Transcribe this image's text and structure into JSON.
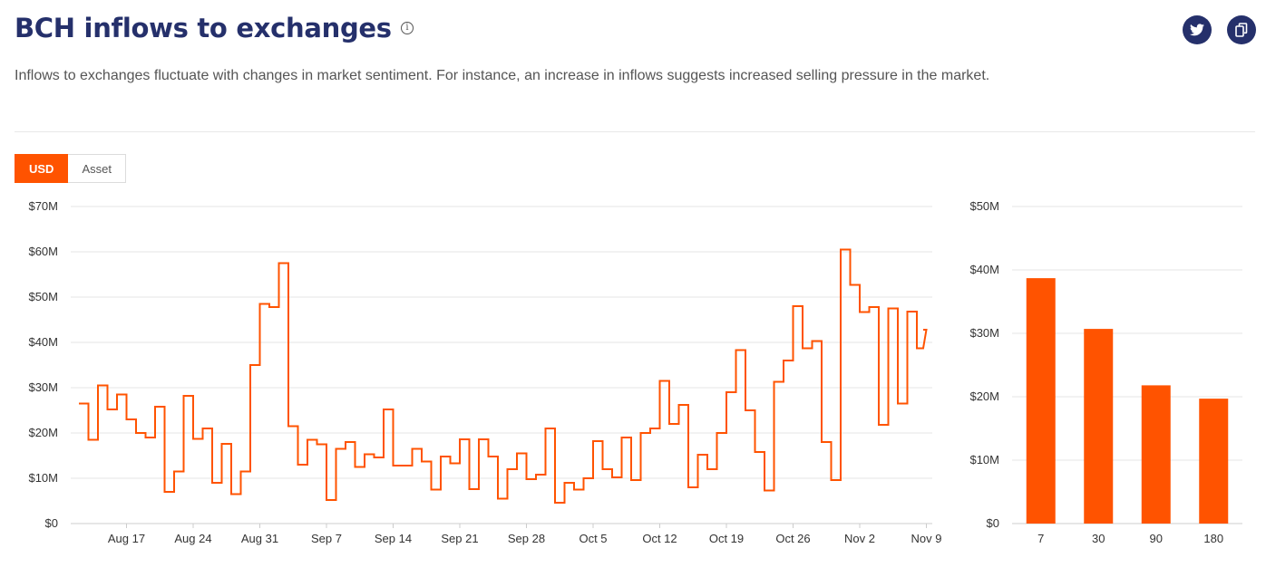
{
  "header": {
    "title": "BCH inflows to exchanges",
    "info_symbol": "i",
    "description": "Inflows to exchanges fluctuate with changes in market sentiment. For instance, an increase in inflows suggests increased selling pressure in the market."
  },
  "share": {
    "twitter_icon": "twitter-icon",
    "copy_icon": "copy-icon"
  },
  "toggle": {
    "options": [
      "USD",
      "Asset"
    ],
    "selected": "USD"
  },
  "colors": {
    "accent": "#ff5300",
    "title": "#25306b",
    "grid": "#e6e6e6"
  },
  "chart_data": [
    {
      "type": "line",
      "step": true,
      "title": "",
      "xlabel": "",
      "ylabel": "",
      "ylim": [
        0,
        70
      ],
      "yticks": [
        0,
        10,
        20,
        30,
        40,
        50,
        60,
        70
      ],
      "ytick_labels": [
        "$0",
        "$10M",
        "$20M",
        "$30M",
        "$40M",
        "$50M",
        "$60M",
        "$70M"
      ],
      "unit": "$M",
      "x_start": "Aug 12",
      "xtick_labels": [
        "Aug 17",
        "Aug 24",
        "Aug 31",
        "Sep 7",
        "Sep 14",
        "Sep 21",
        "Sep 28",
        "Oct 5",
        "Oct 12",
        "Oct 19",
        "Oct 26",
        "Nov 2",
        "Nov 9"
      ],
      "xtick_day_index": [
        5,
        12,
        19,
        26,
        33,
        40,
        47,
        54,
        61,
        68,
        75,
        82,
        89
      ],
      "grid": true,
      "series": [
        {
          "values": [
            26.5,
            18.5,
            30.5,
            25.2,
            28.5,
            23.0,
            20.0,
            19.0,
            25.8,
            7.0,
            11.5,
            28.2,
            18.7,
            21.0,
            9.0,
            17.6,
            6.5,
            11.5,
            35.0,
            48.5,
            47.8,
            57.5,
            21.5,
            13.0,
            18.5,
            17.5,
            5.2,
            16.5,
            18.0,
            12.5,
            15.3,
            14.6,
            25.2,
            12.8,
            12.8,
            16.5,
            13.7,
            7.5,
            14.8,
            13.3,
            18.6,
            7.6,
            18.6,
            14.8,
            5.5,
            12.0,
            15.5,
            9.8,
            10.8,
            21.0,
            4.6,
            9.0,
            7.5,
            10.0,
            18.2,
            12.0,
            10.2,
            19.0,
            9.6,
            20.0,
            21.0,
            31.5,
            22.0,
            26.2,
            8.0,
            15.2,
            12.0,
            20.0,
            29.0,
            38.3,
            25.0,
            15.8,
            7.3,
            31.3,
            36.0,
            48.0,
            38.7,
            40.3,
            18.0,
            9.6,
            60.5,
            52.7,
            46.7,
            47.8,
            21.8,
            47.5,
            26.5,
            46.8,
            38.7,
            42.8
          ]
        }
      ]
    },
    {
      "type": "bar",
      "title": "",
      "xlabel": "",
      "ylabel": "",
      "categories": [
        "7",
        "30",
        "90",
        "180"
      ],
      "values": [
        38.7,
        30.7,
        21.8,
        19.7
      ],
      "ylim": [
        0,
        50
      ],
      "yticks": [
        0,
        10,
        20,
        30,
        40,
        50
      ],
      "ytick_labels": [
        "$0",
        "$10M",
        "$20M",
        "$30M",
        "$40M",
        "$50M"
      ],
      "unit": "$M",
      "grid": true
    }
  ]
}
